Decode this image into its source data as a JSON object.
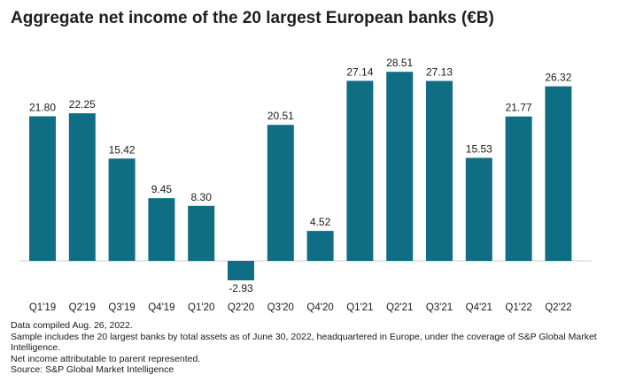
{
  "title": "Aggregate net income of the 20 largest European banks (€B)",
  "colors": {
    "bar": "#0f6e84",
    "baseline": "#cfcfcf"
  },
  "chart_data": {
    "type": "bar",
    "title": "Aggregate net income of the 20 largest European banks (€B)",
    "categories": [
      "Q1'19",
      "Q2'19",
      "Q3'19",
      "Q4'19",
      "Q1'20",
      "Q2'20",
      "Q3'20",
      "Q4'20",
      "Q1'21",
      "Q2'21",
      "Q3'21",
      "Q4'21",
      "Q1'22",
      "Q2'22"
    ],
    "values": [
      21.8,
      22.25,
      15.42,
      9.45,
      8.3,
      -2.93,
      20.51,
      4.52,
      27.14,
      28.51,
      27.13,
      15.53,
      21.77,
      26.32
    ],
    "value_labels": [
      "21.80",
      "22.25",
      "15.42",
      "9.45",
      "8.30",
      "-2.93",
      "20.51",
      "4.52",
      "27.14",
      "28.51",
      "27.13",
      "15.53",
      "21.77",
      "26.32"
    ],
    "xlabel": "",
    "ylabel": "",
    "ylim": [
      -3,
      29
    ],
    "grid": false,
    "legend": "none"
  },
  "notes": [
    "Data compiled Aug. 26, 2022.",
    "Sample includes the 20 largest banks by total assets as of June 30, 2022, headquartered in Europe, under the coverage of S&P Global Market Intelligence.",
    "Net income attributable to parent represented.",
    "Source: S&P Global Market Intelligence"
  ]
}
